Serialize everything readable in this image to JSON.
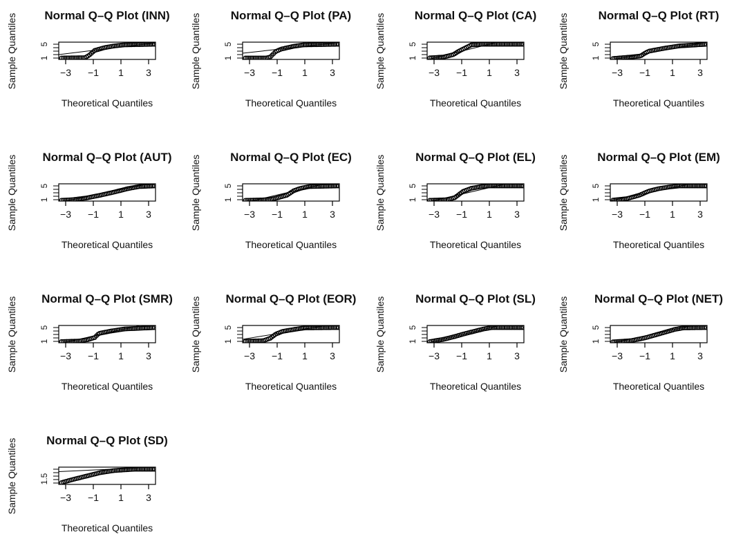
{
  "figure": {
    "xlabel": "Theoretical Quantiles",
    "ylabel": "Sample Quantiles"
  },
  "chart_data": [
    {
      "type": "scatter",
      "title": "Normal Q–Q Plot (INN)",
      "xlabel": "Theoretical Quantiles",
      "ylabel": "Sample Quantiles",
      "xticks": [
        "−3",
        "−1",
        "1",
        "3"
      ],
      "yticks": [
        "1",
        "5"
      ],
      "xlim": [
        -3.5,
        3.5
      ],
      "ylim": [
        0.6,
        5.6
      ],
      "ref_line": [
        [
          -3.5,
          2.0
        ],
        [
          3.5,
          5.4
        ]
      ],
      "knots": [
        [
          -3.5,
          1.0
        ],
        [
          -1.6,
          1.1
        ],
        [
          -1.3,
          1.8
        ],
        [
          -0.9,
          3.2
        ],
        [
          -0.2,
          4.0
        ],
        [
          0.5,
          4.5
        ],
        [
          1.2,
          4.8
        ],
        [
          3.5,
          5.0
        ]
      ]
    },
    {
      "type": "scatter",
      "title": "Normal Q–Q Plot (PA)",
      "xlabel": "Theoretical Quantiles",
      "ylabel": "Sample Quantiles",
      "xticks": [
        "−3",
        "−1",
        "1",
        "3"
      ],
      "yticks": [
        "1",
        "5"
      ],
      "xlim": [
        -3.5,
        3.5
      ],
      "ylim": [
        0.6,
        5.6
      ],
      "ref_line": [
        [
          -3.5,
          2.4
        ],
        [
          3.5,
          5.5
        ]
      ],
      "knots": [
        [
          -3.5,
          1.0
        ],
        [
          -1.8,
          1.0
        ],
        [
          -1.5,
          1.3
        ],
        [
          -1.1,
          2.9
        ],
        [
          -0.7,
          3.6
        ],
        [
          0.2,
          4.4
        ],
        [
          0.9,
          4.8
        ],
        [
          3.5,
          5.0
        ]
      ]
    },
    {
      "type": "scatter",
      "title": "Normal Q–Q Plot (CA)",
      "xlabel": "Theoretical Quantiles",
      "ylabel": "Sample Quantiles",
      "xticks": [
        "−3",
        "−1",
        "1",
        "3"
      ],
      "yticks": [
        "1",
        "5"
      ],
      "xlim": [
        -3.5,
        3.5
      ],
      "ylim": [
        0.6,
        5.6
      ],
      "ref_line": [
        [
          -3.5,
          0.5
        ],
        [
          3.5,
          7.5
        ]
      ],
      "knots": [
        [
          -3.5,
          1.0
        ],
        [
          -2.3,
          1.3
        ],
        [
          -1.6,
          2.0
        ],
        [
          -1.2,
          3.0
        ],
        [
          -0.7,
          4.0
        ],
        [
          -0.3,
          4.8
        ],
        [
          0.5,
          5.0
        ],
        [
          3.5,
          5.0
        ]
      ]
    },
    {
      "type": "scatter",
      "title": "Normal Q–Q Plot (RT)",
      "xlabel": "Theoretical Quantiles",
      "ylabel": "Sample Quantiles",
      "xticks": [
        "−3",
        "−1",
        "1",
        "3"
      ],
      "yticks": [
        "1",
        "5"
      ],
      "xlim": [
        -3.5,
        3.5
      ],
      "ylim": [
        0.6,
        5.6
      ],
      "ref_line": [
        [
          -3.5,
          0.4
        ],
        [
          3.5,
          5.6
        ]
      ],
      "knots": [
        [
          -3.5,
          0.8
        ],
        [
          -2.0,
          1.3
        ],
        [
          -1.3,
          1.6
        ],
        [
          -1.0,
          2.4
        ],
        [
          -0.7,
          3.0
        ],
        [
          0.5,
          3.9
        ],
        [
          1.5,
          4.5
        ],
        [
          3.5,
          5.0
        ]
      ]
    },
    {
      "type": "scatter",
      "title": "Normal Q–Q Plot (AUT)",
      "xlabel": "Theoretical Quantiles",
      "ylabel": "Sample Quantiles",
      "xticks": [
        "−3",
        "−1",
        "1",
        "3"
      ],
      "yticks": [
        "1",
        "5"
      ],
      "xlim": [
        -3.5,
        3.5
      ],
      "ylim": [
        0.6,
        5.6
      ],
      "ref_line": [
        [
          -3.5,
          0.2
        ],
        [
          3.5,
          6.0
        ]
      ],
      "knots": [
        [
          -3.5,
          0.8
        ],
        [
          -2.5,
          1.0
        ],
        [
          -1.5,
          1.5
        ],
        [
          -0.5,
          2.3
        ],
        [
          0.5,
          3.2
        ],
        [
          1.5,
          4.2
        ],
        [
          2.3,
          4.8
        ],
        [
          3.5,
          5.0
        ]
      ]
    },
    {
      "type": "scatter",
      "title": "Normal Q–Q Plot (EC)",
      "xlabel": "Theoretical Quantiles",
      "ylabel": "Sample Quantiles",
      "xticks": [
        "−3",
        "−1",
        "1",
        "3"
      ],
      "yticks": [
        "1",
        "5"
      ],
      "xlim": [
        -3.5,
        3.5
      ],
      "ylim": [
        0.6,
        5.6
      ],
      "ref_line": [
        [
          -3.5,
          0.0
        ],
        [
          3.5,
          6.6
        ]
      ],
      "knots": [
        [
          -3.5,
          0.8
        ],
        [
          -1.6,
          1.0
        ],
        [
          -1.1,
          1.4
        ],
        [
          -0.3,
          2.3
        ],
        [
          0.2,
          3.6
        ],
        [
          0.7,
          4.3
        ],
        [
          1.3,
          4.8
        ],
        [
          3.5,
          5.0
        ]
      ]
    },
    {
      "type": "scatter",
      "title": "Normal Q–Q Plot (EL)",
      "xlabel": "Theoretical Quantiles",
      "ylabel": "Sample Quantiles",
      "xticks": [
        "−3",
        "−1",
        "1",
        "3"
      ],
      "yticks": [
        "1",
        "5"
      ],
      "xlim": [
        -3.5,
        3.5
      ],
      "ylim": [
        0.6,
        5.6
      ],
      "ref_line": [
        [
          -3.5,
          0.3
        ],
        [
          3.5,
          6.8
        ]
      ],
      "knots": [
        [
          -3.5,
          0.8
        ],
        [
          -2.0,
          1.0
        ],
        [
          -1.5,
          1.6
        ],
        [
          -0.9,
          3.4
        ],
        [
          -0.3,
          4.3
        ],
        [
          0.4,
          4.8
        ],
        [
          1.0,
          5.0
        ],
        [
          3.5,
          5.0
        ]
      ]
    },
    {
      "type": "scatter",
      "title": "Normal Q–Q Plot (EM)",
      "xlabel": "Theoretical Quantiles",
      "ylabel": "Sample Quantiles",
      "xticks": [
        "−3",
        "−1",
        "1",
        "3"
      ],
      "yticks": [
        "1",
        "5"
      ],
      "xlim": [
        -3.5,
        3.5
      ],
      "ylim": [
        0.6,
        5.6
      ],
      "ref_line": [
        [
          -3.5,
          0.7
        ],
        [
          3.5,
          6.6
        ]
      ],
      "knots": [
        [
          -3.5,
          0.8
        ],
        [
          -2.3,
          1.3
        ],
        [
          -1.4,
          2.3
        ],
        [
          -0.7,
          3.5
        ],
        [
          0.0,
          4.2
        ],
        [
          0.8,
          4.7
        ],
        [
          1.5,
          5.0
        ],
        [
          3.5,
          5.0
        ]
      ]
    },
    {
      "type": "scatter",
      "title": "Normal Q–Q Plot (SMR)",
      "xlabel": "Theoretical Quantiles",
      "ylabel": "Sample Quantiles",
      "xticks": [
        "−3",
        "−1",
        "1",
        "3"
      ],
      "yticks": [
        "1",
        "5"
      ],
      "xlim": [
        -3.5,
        3.5
      ],
      "ylim": [
        0.6,
        5.6
      ],
      "ref_line": [
        [
          -3.5,
          0.3
        ],
        [
          3.5,
          6.6
        ]
      ],
      "knots": [
        [
          -3.5,
          0.9
        ],
        [
          -2.0,
          1.1
        ],
        [
          -1.4,
          1.5
        ],
        [
          -0.9,
          2.1
        ],
        [
          -0.6,
          3.3
        ],
        [
          0.3,
          4.0
        ],
        [
          1.3,
          4.6
        ],
        [
          3.5,
          5.0
        ]
      ]
    },
    {
      "type": "scatter",
      "title": "Normal Q–Q Plot (EOR)",
      "xlabel": "Theoretical Quantiles",
      "ylabel": "Sample Quantiles",
      "xticks": [
        "−3",
        "−1",
        "1",
        "3"
      ],
      "yticks": [
        "1",
        "5"
      ],
      "xlim": [
        -3.5,
        3.5
      ],
      "ylim": [
        0.6,
        5.6
      ],
      "ref_line": [
        [
          -3.5,
          1.6
        ],
        [
          3.5,
          6.2
        ]
      ],
      "knots": [
        [
          -3.5,
          1.0
        ],
        [
          -2.0,
          1.2
        ],
        [
          -1.5,
          1.9
        ],
        [
          -1.1,
          3.1
        ],
        [
          -0.6,
          3.9
        ],
        [
          0.3,
          4.5
        ],
        [
          1.0,
          4.9
        ],
        [
          3.5,
          5.0
        ]
      ]
    },
    {
      "type": "scatter",
      "title": "Normal Q–Q Plot (SL)",
      "xlabel": "Theoretical Quantiles",
      "ylabel": "Sample Quantiles",
      "xticks": [
        "−3",
        "−1",
        "1",
        "3"
      ],
      "yticks": [
        "1",
        "5"
      ],
      "xlim": [
        -3.5,
        3.5
      ],
      "ylim": [
        0.6,
        5.6
      ],
      "ref_line": [
        [
          -3.5,
          0.5
        ],
        [
          3.5,
          7.3
        ]
      ],
      "knots": [
        [
          -3.5,
          0.8
        ],
        [
          -2.3,
          1.6
        ],
        [
          -1.5,
          2.4
        ],
        [
          -0.8,
          3.2
        ],
        [
          0.0,
          4.0
        ],
        [
          0.6,
          4.6
        ],
        [
          1.2,
          5.0
        ],
        [
          3.5,
          5.0
        ]
      ]
    },
    {
      "type": "scatter",
      "title": "Normal Q–Q Plot (NET)",
      "xlabel": "Theoretical Quantiles",
      "ylabel": "Sample Quantiles",
      "xticks": [
        "−3",
        "−1",
        "1",
        "3"
      ],
      "yticks": [
        "1",
        "5"
      ],
      "xlim": [
        -3.5,
        3.5
      ],
      "ylim": [
        0.6,
        5.6
      ],
      "ref_line": [
        [
          -3.5,
          0.4
        ],
        [
          3.5,
          6.5
        ]
      ],
      "knots": [
        [
          -3.5,
          0.8
        ],
        [
          -2.0,
          1.2
        ],
        [
          -1.0,
          2.0
        ],
        [
          -0.2,
          2.9
        ],
        [
          0.5,
          3.7
        ],
        [
          1.2,
          4.5
        ],
        [
          1.8,
          4.9
        ],
        [
          3.5,
          5.0
        ]
      ]
    },
    {
      "type": "scatter",
      "title": "Normal Q–Q Plot (SD)",
      "xlabel": "Theoretical Quantiles",
      "ylabel": "Sample Quantiles",
      "xticks": [
        "−3",
        "−1",
        "1",
        "3"
      ],
      "yticks": [
        "1.5"
      ],
      "xlim": [
        -3.5,
        3.5
      ],
      "ylim": [
        0.6,
        5.6
      ],
      "ref_line": [
        [
          -3.5,
          4.3
        ],
        [
          3.5,
          5.6
        ]
      ],
      "knots": [
        [
          -3.5,
          0.9
        ],
        [
          -2.5,
          2.0
        ],
        [
          -1.5,
          3.0
        ],
        [
          -0.5,
          4.0
        ],
        [
          0.5,
          4.6
        ],
        [
          1.2,
          4.8
        ],
        [
          2.0,
          5.0
        ],
        [
          3.5,
          5.0
        ]
      ]
    }
  ]
}
